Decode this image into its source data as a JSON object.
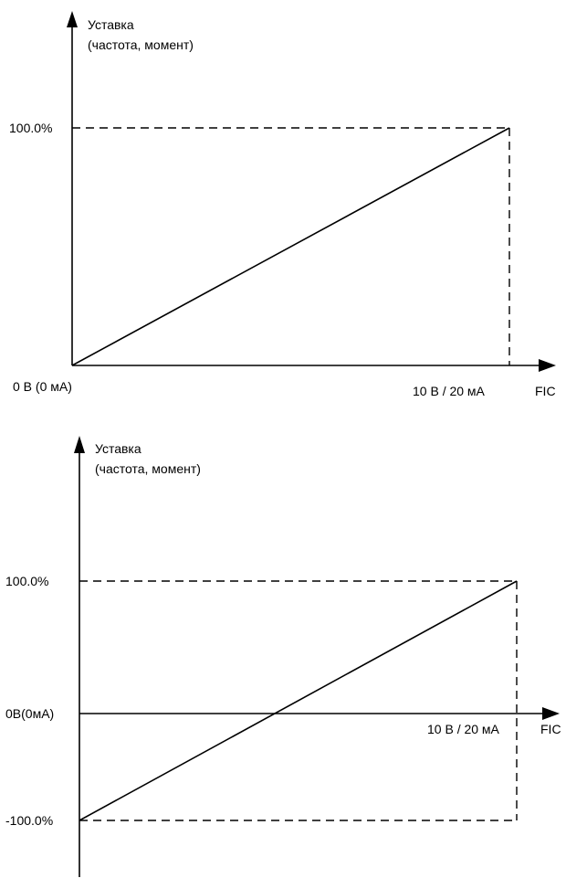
{
  "chart_data": [
    {
      "type": "line",
      "ylabel_line1": "Уставка",
      "ylabel_line2": "(частота, момент)",
      "xlabel": "FIC",
      "x_start_label": "0 В (0 мА)",
      "x_end_label": "10 В / 20 мА",
      "y_max_label": "100.0%",
      "x_range": [
        "0 В (0 мА)",
        "10 В / 20 мА"
      ],
      "ylim": [
        0,
        100
      ],
      "series": [
        {
          "x": [
            0,
            1
          ],
          "y": [
            0,
            100
          ]
        }
      ]
    },
    {
      "type": "line",
      "ylabel_line1": "Уставка",
      "ylabel_line2": "(частота, момент)",
      "xlabel": "FIC",
      "origin_label": "0В(0мА)",
      "x_end_label": "10 В / 20 мА",
      "y_max_label": "100.0%",
      "y_min_label": "-100.0%",
      "x_range": [
        "0 В (0 мА)",
        "10 В / 20 мА"
      ],
      "ylim": [
        -100,
        100
      ],
      "series": [
        {
          "x": [
            0,
            1
          ],
          "y": [
            -100,
            100
          ]
        }
      ]
    }
  ]
}
